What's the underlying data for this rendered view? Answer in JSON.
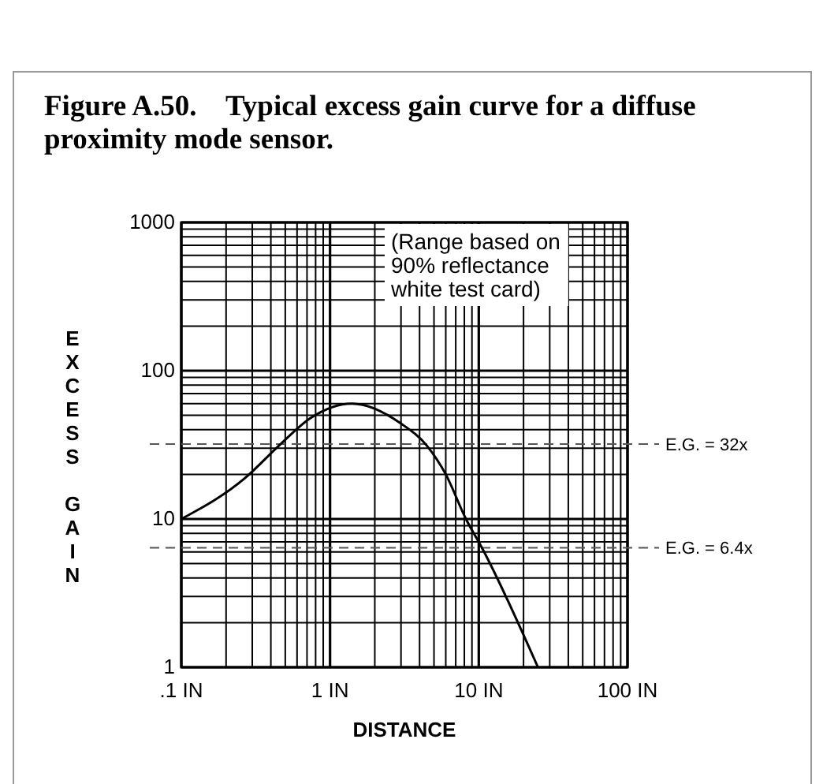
{
  "chart_data": {
    "type": "line",
    "title": "Figure A.50.    Typical excess gain curve for a diffuse proximity mode sensor.",
    "xlabel": "DISTANCE",
    "ylabel": "EXCESS GAIN",
    "log": "xy",
    "grid": true,
    "marker": "none",
    "line_style": "solid",
    "x": [
      0.1,
      0.27,
      0.45,
      0.74,
      1.4,
      3,
      4.5,
      6,
      8.2,
      10.5,
      25
    ],
    "series": [
      {
        "color": "#000000",
        "values": [
          10,
          19,
          31,
          48,
          60,
          44,
          31,
          20,
          10,
          6.4,
          1
        ]
      }
    ],
    "xlim": [
      0.1,
      100
    ],
    "ylim": [
      1,
      1000
    ],
    "xticks": [
      {
        "value": 0.1,
        "label": ".1 IN"
      },
      {
        "value": 0.2,
        "label": null
      },
      {
        "value": 0.3,
        "label": null
      },
      {
        "value": 0.4,
        "label": null
      },
      {
        "value": 0.5,
        "label": null
      },
      {
        "value": 0.6,
        "label": null
      },
      {
        "value": 0.7,
        "label": null
      },
      {
        "value": 0.8,
        "label": null
      },
      {
        "value": 0.9,
        "label": null
      },
      {
        "value": 1,
        "label": "1 IN"
      },
      {
        "value": 2,
        "label": null
      },
      {
        "value": 3,
        "label": null
      },
      {
        "value": 4,
        "label": null
      },
      {
        "value": 5,
        "label": null
      },
      {
        "value": 6,
        "label": null
      },
      {
        "value": 7,
        "label": null
      },
      {
        "value": 8,
        "label": null
      },
      {
        "value": 9,
        "label": null
      },
      {
        "value": 10,
        "label": "10 IN"
      },
      {
        "value": 20,
        "label": null
      },
      {
        "value": 30,
        "label": null
      },
      {
        "value": 40,
        "label": null
      },
      {
        "value": 50,
        "label": null
      },
      {
        "value": 60,
        "label": null
      },
      {
        "value": 70,
        "label": null
      },
      {
        "value": 80,
        "label": null
      },
      {
        "value": 90,
        "label": null
      },
      {
        "value": 100,
        "label": "100 IN"
      }
    ],
    "yticks": [
      1,
      {
        "value": 2,
        "label": null
      },
      {
        "value": 3,
        "label": null
      },
      {
        "value": 4,
        "label": null
      },
      {
        "value": 5,
        "label": null
      },
      {
        "value": 6,
        "label": null
      },
      {
        "value": 7,
        "label": null
      },
      {
        "value": 8,
        "label": null
      },
      {
        "value": 9,
        "label": null
      },
      10,
      {
        "value": 20,
        "label": null
      },
      {
        "value": 30,
        "label": null
      },
      {
        "value": 40,
        "label": null
      },
      {
        "value": 50,
        "label": null
      },
      {
        "value": 60,
        "label": null
      },
      {
        "value": 70,
        "label": null
      },
      {
        "value": 80,
        "label": null
      },
      {
        "value": 90,
        "label": null
      },
      100,
      {
        "value": 200,
        "label": null
      },
      {
        "value": 300,
        "label": null
      },
      {
        "value": 400,
        "label": null
      },
      {
        "value": 500,
        "label": null
      },
      {
        "value": 600,
        "label": null
      },
      {
        "value": 700,
        "label": null
      },
      {
        "value": 800,
        "label": null
      },
      {
        "value": 900,
        "label": null
      },
      1000
    ],
    "ref_lines": [
      {
        "axis": "y",
        "value": 32,
        "label": "E.G. = 32x",
        "color": "#555555",
        "line_style": "dashed"
      },
      {
        "axis": "y",
        "value": 6.4,
        "label": "E.G. = 6.4x",
        "color": "#555555",
        "line_style": "dashed"
      }
    ],
    "annotations": [
      "(Range based on 90% reflectance white test card)"
    ]
  }
}
